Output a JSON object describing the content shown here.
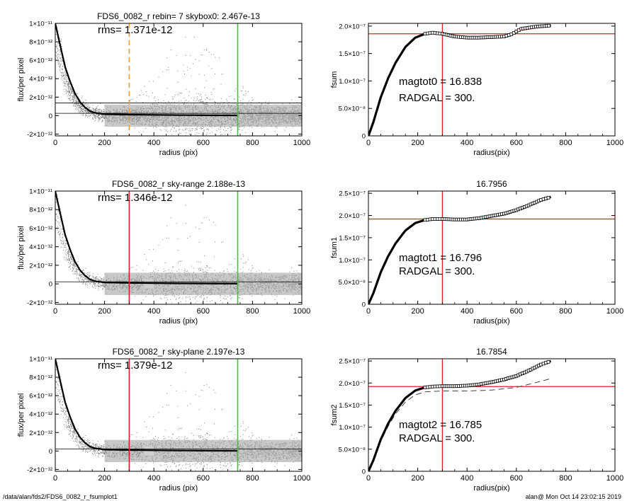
{
  "footer": {
    "path": "/data/alan/fds2/FDS6_0082_r_fsumplot1",
    "stamp": "alan@  Mon Oct 14 23:02:15 2019"
  },
  "chart_data": [
    {
      "id": "p1",
      "type": "scatter",
      "title": "FDS6_0082_r rebin= 7    skybox0:  2.467e-13",
      "annotations": [
        "rms= 1.371e-12"
      ],
      "xlabel": "radius (pix)",
      "ylabel": "flux/per pixel",
      "xlim": [
        0,
        1000
      ],
      "ylim": [
        -2.2e-12,
        1e-11
      ],
      "xticks": [
        0,
        200,
        400,
        600,
        800,
        1000
      ],
      "ytick_labels": [
        "-2×10⁻¹²",
        "0",
        "2×10⁻¹²",
        "4×10⁻¹²",
        "6×10⁻¹²",
        "8×10⁻¹²",
        "1×10⁻¹¹"
      ],
      "ytick_values": [
        -2e-12,
        0,
        2e-12,
        4e-12,
        6e-12,
        8e-12,
        1e-11
      ],
      "vlines": [
        {
          "x": 300,
          "color": "#f0a030",
          "style": "dashed"
        },
        {
          "x": 740,
          "color": "#33cc33",
          "style": "solid"
        }
      ],
      "hlines": [
        2.467e-13,
        1.371e-12
      ],
      "profile": [
        [
          0,
          1e-11
        ],
        [
          20,
          7.6e-12
        ],
        [
          40,
          5.3e-12
        ],
        [
          60,
          3.7e-12
        ],
        [
          80,
          2.4e-12
        ],
        [
          100,
          1.5e-12
        ],
        [
          120,
          9e-13
        ],
        [
          140,
          5e-13
        ],
        [
          160,
          3e-13
        ],
        [
          200,
          1.5e-13
        ],
        [
          300,
          1e-13
        ],
        [
          500,
          5e-14
        ],
        [
          740,
          2e-14
        ]
      ],
      "inner_bin_range": [
        0,
        0
      ]
    },
    {
      "id": "p2",
      "type": "line",
      "title": "",
      "annotations": [
        "magtot0 = 16.838",
        "RADGAL =    300."
      ],
      "xlabel": "radius(pix)",
      "ylabel": "fsum",
      "xlim": [
        0,
        1000
      ],
      "ylim": [
        0,
        2.05e-07
      ],
      "xticks": [
        0,
        200,
        400,
        600,
        800,
        1000
      ],
      "ytick_labels": [
        "0",
        "5.0×10⁻⁸",
        "1.0×10⁻⁷",
        "1.5×10⁻⁷",
        "2.0×10⁻⁷"
      ],
      "ytick_values": [
        0,
        5e-08,
        1e-07,
        1.5e-07,
        2e-07
      ],
      "hline": 1.86e-07,
      "vline": 300,
      "curve": [
        [
          0,
          0
        ],
        [
          20,
          2.5e-08
        ],
        [
          50,
          7e-08
        ],
        [
          80,
          1.05e-07
        ],
        [
          110,
          1.33e-07
        ],
        [
          150,
          1.62e-07
        ],
        [
          190,
          1.79e-07
        ],
        [
          230,
          1.86e-07
        ],
        [
          260,
          1.88e-07
        ],
        [
          300,
          1.86e-07
        ],
        [
          350,
          1.81e-07
        ],
        [
          400,
          1.79e-07
        ],
        [
          450,
          1.79e-07
        ],
        [
          500,
          1.8e-07
        ],
        [
          550,
          1.81e-07
        ],
        [
          580,
          1.85e-07
        ],
        [
          620,
          1.95e-07
        ],
        [
          680,
          1.99e-07
        ],
        [
          740,
          2.01e-07
        ]
      ],
      "dashed_curve": []
    },
    {
      "id": "p3",
      "type": "scatter",
      "title": "FDS6_0082_r sky-range  2.188e-13",
      "annotations": [
        "rms= 1.346e-12"
      ],
      "xlabel": "radius (pix)",
      "ylabel": "flux/per pixel",
      "xlim": [
        0,
        1000
      ],
      "ylim": [
        -2.2e-12,
        1e-11
      ],
      "xticks": [
        0,
        200,
        400,
        600,
        800,
        1000
      ],
      "ytick_labels": [
        "-2×10⁻¹²",
        "0",
        "2×10⁻¹²",
        "4×10⁻¹²",
        "6×10⁻¹²",
        "8×10⁻¹²",
        "1×10⁻¹¹"
      ],
      "ytick_values": [
        -2e-12,
        0,
        2e-12,
        4e-12,
        6e-12,
        8e-12,
        1e-11
      ],
      "vlines": [
        {
          "x": 300,
          "color": "#e02020",
          "style": "solid"
        },
        {
          "x": 740,
          "color": "#33cc33",
          "style": "solid"
        }
      ],
      "hlines": [
        2.188e-13
      ],
      "profile": [
        [
          0,
          1e-11
        ],
        [
          20,
          7.6e-12
        ],
        [
          40,
          5.3e-12
        ],
        [
          60,
          3.7e-12
        ],
        [
          80,
          2.4e-12
        ],
        [
          100,
          1.5e-12
        ],
        [
          120,
          9e-13
        ],
        [
          140,
          5e-13
        ],
        [
          160,
          3e-13
        ],
        [
          200,
          1.5e-13
        ],
        [
          300,
          1e-13
        ],
        [
          500,
          5e-14
        ],
        [
          740,
          2e-14
        ]
      ],
      "inner_bin_range": [
        360,
        400
      ]
    },
    {
      "id": "p4",
      "type": "line",
      "title": "16.7956",
      "annotations": [
        "magtot1 = 16.796",
        "RADGAL =    300."
      ],
      "xlabel": "radius(pix)",
      "ylabel": "fsum1",
      "xlim": [
        0,
        1000
      ],
      "ylim": [
        0,
        2.55e-07
      ],
      "xticks": [
        0,
        200,
        400,
        600,
        800,
        1000
      ],
      "ytick_labels": [
        "0",
        "5.0×10⁻⁸",
        "1.0×10⁻⁷",
        "1.5×10⁻⁷",
        "2.0×10⁻⁷",
        "2.5×10⁻⁷"
      ],
      "ytick_values": [
        0,
        5e-08,
        1e-07,
        1.5e-07,
        2e-07,
        2.5e-07
      ],
      "hline": 1.92e-07,
      "vline": 300,
      "curve": [
        [
          0,
          0
        ],
        [
          20,
          2.5e-08
        ],
        [
          50,
          7.2e-08
        ],
        [
          80,
          1.08e-07
        ],
        [
          110,
          1.37e-07
        ],
        [
          150,
          1.66e-07
        ],
        [
          190,
          1.83e-07
        ],
        [
          230,
          1.9e-07
        ],
        [
          260,
          1.92e-07
        ],
        [
          300,
          1.92e-07
        ],
        [
          350,
          1.91e-07
        ],
        [
          400,
          1.91e-07
        ],
        [
          450,
          1.94e-07
        ],
        [
          500,
          1.99e-07
        ],
        [
          550,
          2.04e-07
        ],
        [
          600,
          2.12e-07
        ],
        [
          650,
          2.23e-07
        ],
        [
          700,
          2.35e-07
        ],
        [
          740,
          2.42e-07
        ]
      ],
      "dashed_curve": []
    },
    {
      "id": "p5",
      "type": "scatter",
      "title": "FDS6_0082_r sky-plane  2.197e-13",
      "annotations": [
        "rms= 1.379e-12"
      ],
      "xlabel": "radius (pix)",
      "ylabel": "flux/per pixel",
      "xlim": [
        0,
        1000
      ],
      "ylim": [
        -2.2e-12,
        1e-11
      ],
      "xticks": [
        0,
        200,
        400,
        600,
        800,
        1000
      ],
      "ytick_labels": [
        "-2×10⁻¹²",
        "0",
        "2×10⁻¹²",
        "4×10⁻¹²",
        "6×10⁻¹²",
        "8×10⁻¹²",
        "1×10⁻¹¹"
      ],
      "ytick_values": [
        -2e-12,
        0,
        2e-12,
        4e-12,
        6e-12,
        8e-12,
        1e-11
      ],
      "vlines": [
        {
          "x": 300,
          "color": "#e02020",
          "style": "solid"
        },
        {
          "x": 740,
          "color": "#33cc33",
          "style": "solid"
        }
      ],
      "hlines": [
        2.197e-13
      ],
      "profile": [
        [
          0,
          1e-11
        ],
        [
          20,
          7.6e-12
        ],
        [
          40,
          5.3e-12
        ],
        [
          60,
          3.7e-12
        ],
        [
          80,
          2.4e-12
        ],
        [
          100,
          1.5e-12
        ],
        [
          120,
          9e-13
        ],
        [
          140,
          5e-13
        ],
        [
          160,
          3e-13
        ],
        [
          200,
          1.5e-13
        ],
        [
          300,
          1e-13
        ],
        [
          500,
          5e-14
        ],
        [
          740,
          2e-14
        ]
      ],
      "inner_bin_range": [
        360,
        400
      ]
    },
    {
      "id": "p6",
      "type": "line",
      "title": "16.7854",
      "annotations": [
        "magtot2 = 16.785",
        "RADGAL =    300."
      ],
      "xlabel": "radius(pix)",
      "ylabel": "fsum2",
      "xlim": [
        0,
        1000
      ],
      "ylim": [
        0,
        2.55e-07
      ],
      "xticks": [
        0,
        200,
        400,
        600,
        800,
        1000
      ],
      "ytick_labels": [
        "0",
        "5.0×10⁻⁸",
        "1.0×10⁻⁷",
        "1.5×10⁻⁷",
        "2.0×10⁻⁷",
        "2.5×10⁻⁷"
      ],
      "ytick_values": [
        0,
        5e-08,
        1e-07,
        1.5e-07,
        2e-07,
        2.5e-07
      ],
      "hline": 1.92e-07,
      "vline": 300,
      "curve": [
        [
          0,
          0
        ],
        [
          20,
          2.5e-08
        ],
        [
          50,
          7.2e-08
        ],
        [
          80,
          1.08e-07
        ],
        [
          110,
          1.37e-07
        ],
        [
          150,
          1.66e-07
        ],
        [
          190,
          1.83e-07
        ],
        [
          230,
          1.9e-07
        ],
        [
          260,
          1.92e-07
        ],
        [
          300,
          1.93e-07
        ],
        [
          350,
          1.93e-07
        ],
        [
          400,
          1.94e-07
        ],
        [
          450,
          1.97e-07
        ],
        [
          500,
          2.02e-07
        ],
        [
          550,
          2.08e-07
        ],
        [
          600,
          2.16e-07
        ],
        [
          650,
          2.28e-07
        ],
        [
          700,
          2.42e-07
        ],
        [
          740,
          2.5e-07
        ]
      ],
      "dashed_curve": [
        [
          0,
          0
        ],
        [
          20,
          2.3e-08
        ],
        [
          50,
          6.8e-08
        ],
        [
          80,
          1.02e-07
        ],
        [
          110,
          1.3e-07
        ],
        [
          150,
          1.57e-07
        ],
        [
          190,
          1.73e-07
        ],
        [
          230,
          1.8e-07
        ],
        [
          300,
          1.82e-07
        ],
        [
          400,
          1.82e-07
        ],
        [
          500,
          1.84e-07
        ],
        [
          600,
          1.9e-07
        ],
        [
          700,
          2.04e-07
        ],
        [
          740,
          2.1e-07
        ]
      ]
    }
  ]
}
